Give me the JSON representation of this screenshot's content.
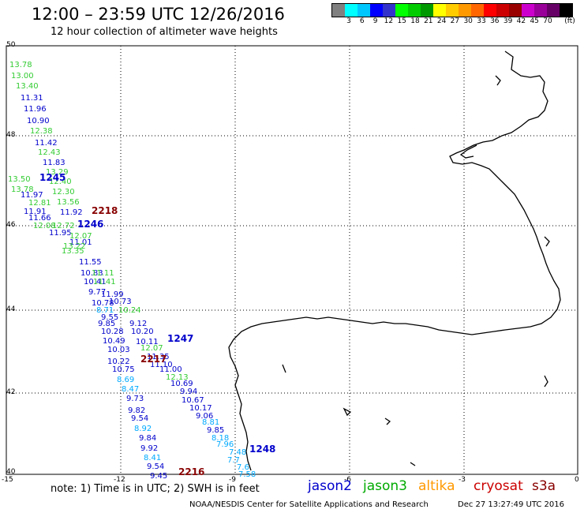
{
  "header": {
    "title": "12:00 – 23:59 UTC 12/26/2016",
    "subtitle": "12 hour collection of altimeter wave heights"
  },
  "legend": {
    "unit": "(ft)",
    "colors": [
      "#808080",
      "#00ffff",
      "#00c8ff",
      "#0000ff",
      "#3333cc",
      "#00ff00",
      "#00cc00",
      "#009900",
      "#ffff00",
      "#ffcc00",
      "#ff9900",
      "#ff6600",
      "#ff0000",
      "#cc0000",
      "#990000",
      "#cc00cc",
      "#990099",
      "#660066",
      "#000000"
    ],
    "ticks": [
      "3",
      "6",
      "9",
      "12",
      "15",
      "18",
      "21",
      "24",
      "27",
      "30",
      "33",
      "36",
      "39",
      "42",
      "45",
      "70"
    ]
  },
  "map": {
    "lat_ticks": [
      "50",
      "48",
      "46",
      "44",
      "42",
      "40"
    ],
    "lon_ticks": [
      "-15",
      "-12",
      "-9",
      "-6",
      "-3",
      "0"
    ]
  },
  "satellites": [
    {
      "name": "jason2",
      "color": "#0000cc"
    },
    {
      "name": "jason3",
      "color": "#00aa00"
    },
    {
      "name": "altika",
      "color": "#ff9900"
    },
    {
      "name": "cryosat",
      "color": "#cc0000"
    },
    {
      "name": "s3a",
      "color": "#880000"
    }
  ],
  "note": "note: 1) Time is in UTC; 2) SWH is in feet",
  "footer": {
    "agency": "NOAA/NESDIS Center for Satellite Applications and Research",
    "timestamp": "Dec 27 13:27:49 UTC 2016"
  },
  "passes": [
    {
      "label": "1245",
      "color": "#0000cc"
    },
    {
      "label": "1246",
      "color": "#0000cc"
    },
    {
      "label": "1247",
      "color": "#0000cc"
    },
    {
      "label": "1248",
      "color": "#0000cc"
    },
    {
      "label": "2218",
      "color": "#880000"
    },
    {
      "label": "2217",
      "color": "#880000"
    },
    {
      "label": "2216",
      "color": "#880000"
    }
  ],
  "wave_heights": [
    {
      "v": "13.78",
      "c": "#33cc33"
    },
    {
      "v": "13.00",
      "c": "#33cc33"
    },
    {
      "v": "13.40",
      "c": "#33cc33"
    },
    {
      "v": "11.31",
      "c": "#0000cc"
    },
    {
      "v": "11.96",
      "c": "#0000cc"
    },
    {
      "v": "10.90",
      "c": "#0000cc"
    },
    {
      "v": "12.38",
      "c": "#33cc33"
    },
    {
      "v": "11.42",
      "c": "#0000cc"
    },
    {
      "v": "12.43",
      "c": "#33cc33"
    },
    {
      "v": "11.83",
      "c": "#0000cc"
    },
    {
      "v": "13.29",
      "c": "#33cc33"
    },
    {
      "v": "13.50",
      "c": "#33cc33"
    },
    {
      "v": "12.40",
      "c": "#33cc33"
    },
    {
      "v": "13.78",
      "c": "#33cc33"
    },
    {
      "v": "12.30",
      "c": "#33cc33"
    },
    {
      "v": "11.97",
      "c": "#0000cc"
    },
    {
      "v": "12.81",
      "c": "#33cc33"
    },
    {
      "v": "13.56",
      "c": "#33cc33"
    },
    {
      "v": "11.91",
      "c": "#0000cc"
    },
    {
      "v": "11.92",
      "c": "#0000cc"
    },
    {
      "v": "11.66",
      "c": "#0000cc"
    },
    {
      "v": "12.08",
      "c": "#33cc33"
    },
    {
      "v": "12.72",
      "c": "#33cc33"
    },
    {
      "v": "11.95",
      "c": "#0000cc"
    },
    {
      "v": "12.07",
      "c": "#33cc33"
    },
    {
      "v": "11.01",
      "c": "#0000cc"
    },
    {
      "v": "13.22",
      "c": "#33cc33"
    },
    {
      "v": "13.35",
      "c": "#33cc33"
    },
    {
      "v": "11.55",
      "c": "#0000cc"
    },
    {
      "v": "10.83",
      "c": "#0000cc"
    },
    {
      "v": "11.11",
      "c": "#33cc33"
    },
    {
      "v": "10.41",
      "c": "#0000cc"
    },
    {
      "v": "11.41",
      "c": "#33cc33"
    },
    {
      "v": "9.77",
      "c": "#0000cc"
    },
    {
      "v": "11.99",
      "c": "#0000cc"
    },
    {
      "v": "10.78",
      "c": "#0000cc"
    },
    {
      "v": "10.73",
      "c": "#0000cc"
    },
    {
      "v": "8.71",
      "c": "#00aaff"
    },
    {
      "v": "10.24",
      "c": "#33cc33"
    },
    {
      "v": "9.55",
      "c": "#0000cc"
    },
    {
      "v": "9.85",
      "c": "#0000cc"
    },
    {
      "v": "9.12",
      "c": "#0000cc"
    },
    {
      "v": "10.28",
      "c": "#0000cc"
    },
    {
      "v": "10.20",
      "c": "#0000cc"
    },
    {
      "v": "10.49",
      "c": "#0000cc"
    },
    {
      "v": "10.11",
      "c": "#0000cc"
    },
    {
      "v": "10.03",
      "c": "#0000cc"
    },
    {
      "v": "12.07",
      "c": "#33cc33"
    },
    {
      "v": "11.35",
      "c": "#0000cc"
    },
    {
      "v": "10.22",
      "c": "#0000cc"
    },
    {
      "v": "11.10",
      "c": "#0000cc"
    },
    {
      "v": "10.75",
      "c": "#0000cc"
    },
    {
      "v": "11.00",
      "c": "#0000cc"
    },
    {
      "v": "8.69",
      "c": "#00aaff"
    },
    {
      "v": "12.13",
      "c": "#33cc33"
    },
    {
      "v": "8.47",
      "c": "#00aaff"
    },
    {
      "v": "10.69",
      "c": "#0000cc"
    },
    {
      "v": "9.94",
      "c": "#0000cc"
    },
    {
      "v": "9.73",
      "c": "#0000cc"
    },
    {
      "v": "10.67",
      "c": "#0000cc"
    },
    {
      "v": "10.17",
      "c": "#0000cc"
    },
    {
      "v": "9.82",
      "c": "#0000cc"
    },
    {
      "v": "9.06",
      "c": "#0000cc"
    },
    {
      "v": "9.54",
      "c": "#0000cc"
    },
    {
      "v": "8.81",
      "c": "#00aaff"
    },
    {
      "v": "8.92",
      "c": "#00aaff"
    },
    {
      "v": "9.85",
      "c": "#0000cc"
    },
    {
      "v": "8.18",
      "c": "#00aaff"
    },
    {
      "v": "9.84",
      "c": "#0000cc"
    },
    {
      "v": "7.96",
      "c": "#00aaff"
    },
    {
      "v": "9.92",
      "c": "#0000cc"
    },
    {
      "v": "7.48",
      "c": "#00aaff"
    },
    {
      "v": "8.41",
      "c": "#00aaff"
    },
    {
      "v": "7.7",
      "c": "#00aaff"
    },
    {
      "v": "9.54",
      "c": "#0000cc"
    },
    {
      "v": "7.6",
      "c": "#00aaff"
    },
    {
      "v": "9.45",
      "c": "#0000cc"
    },
    {
      "v": "7.58",
      "c": "#00aaff"
    }
  ]
}
